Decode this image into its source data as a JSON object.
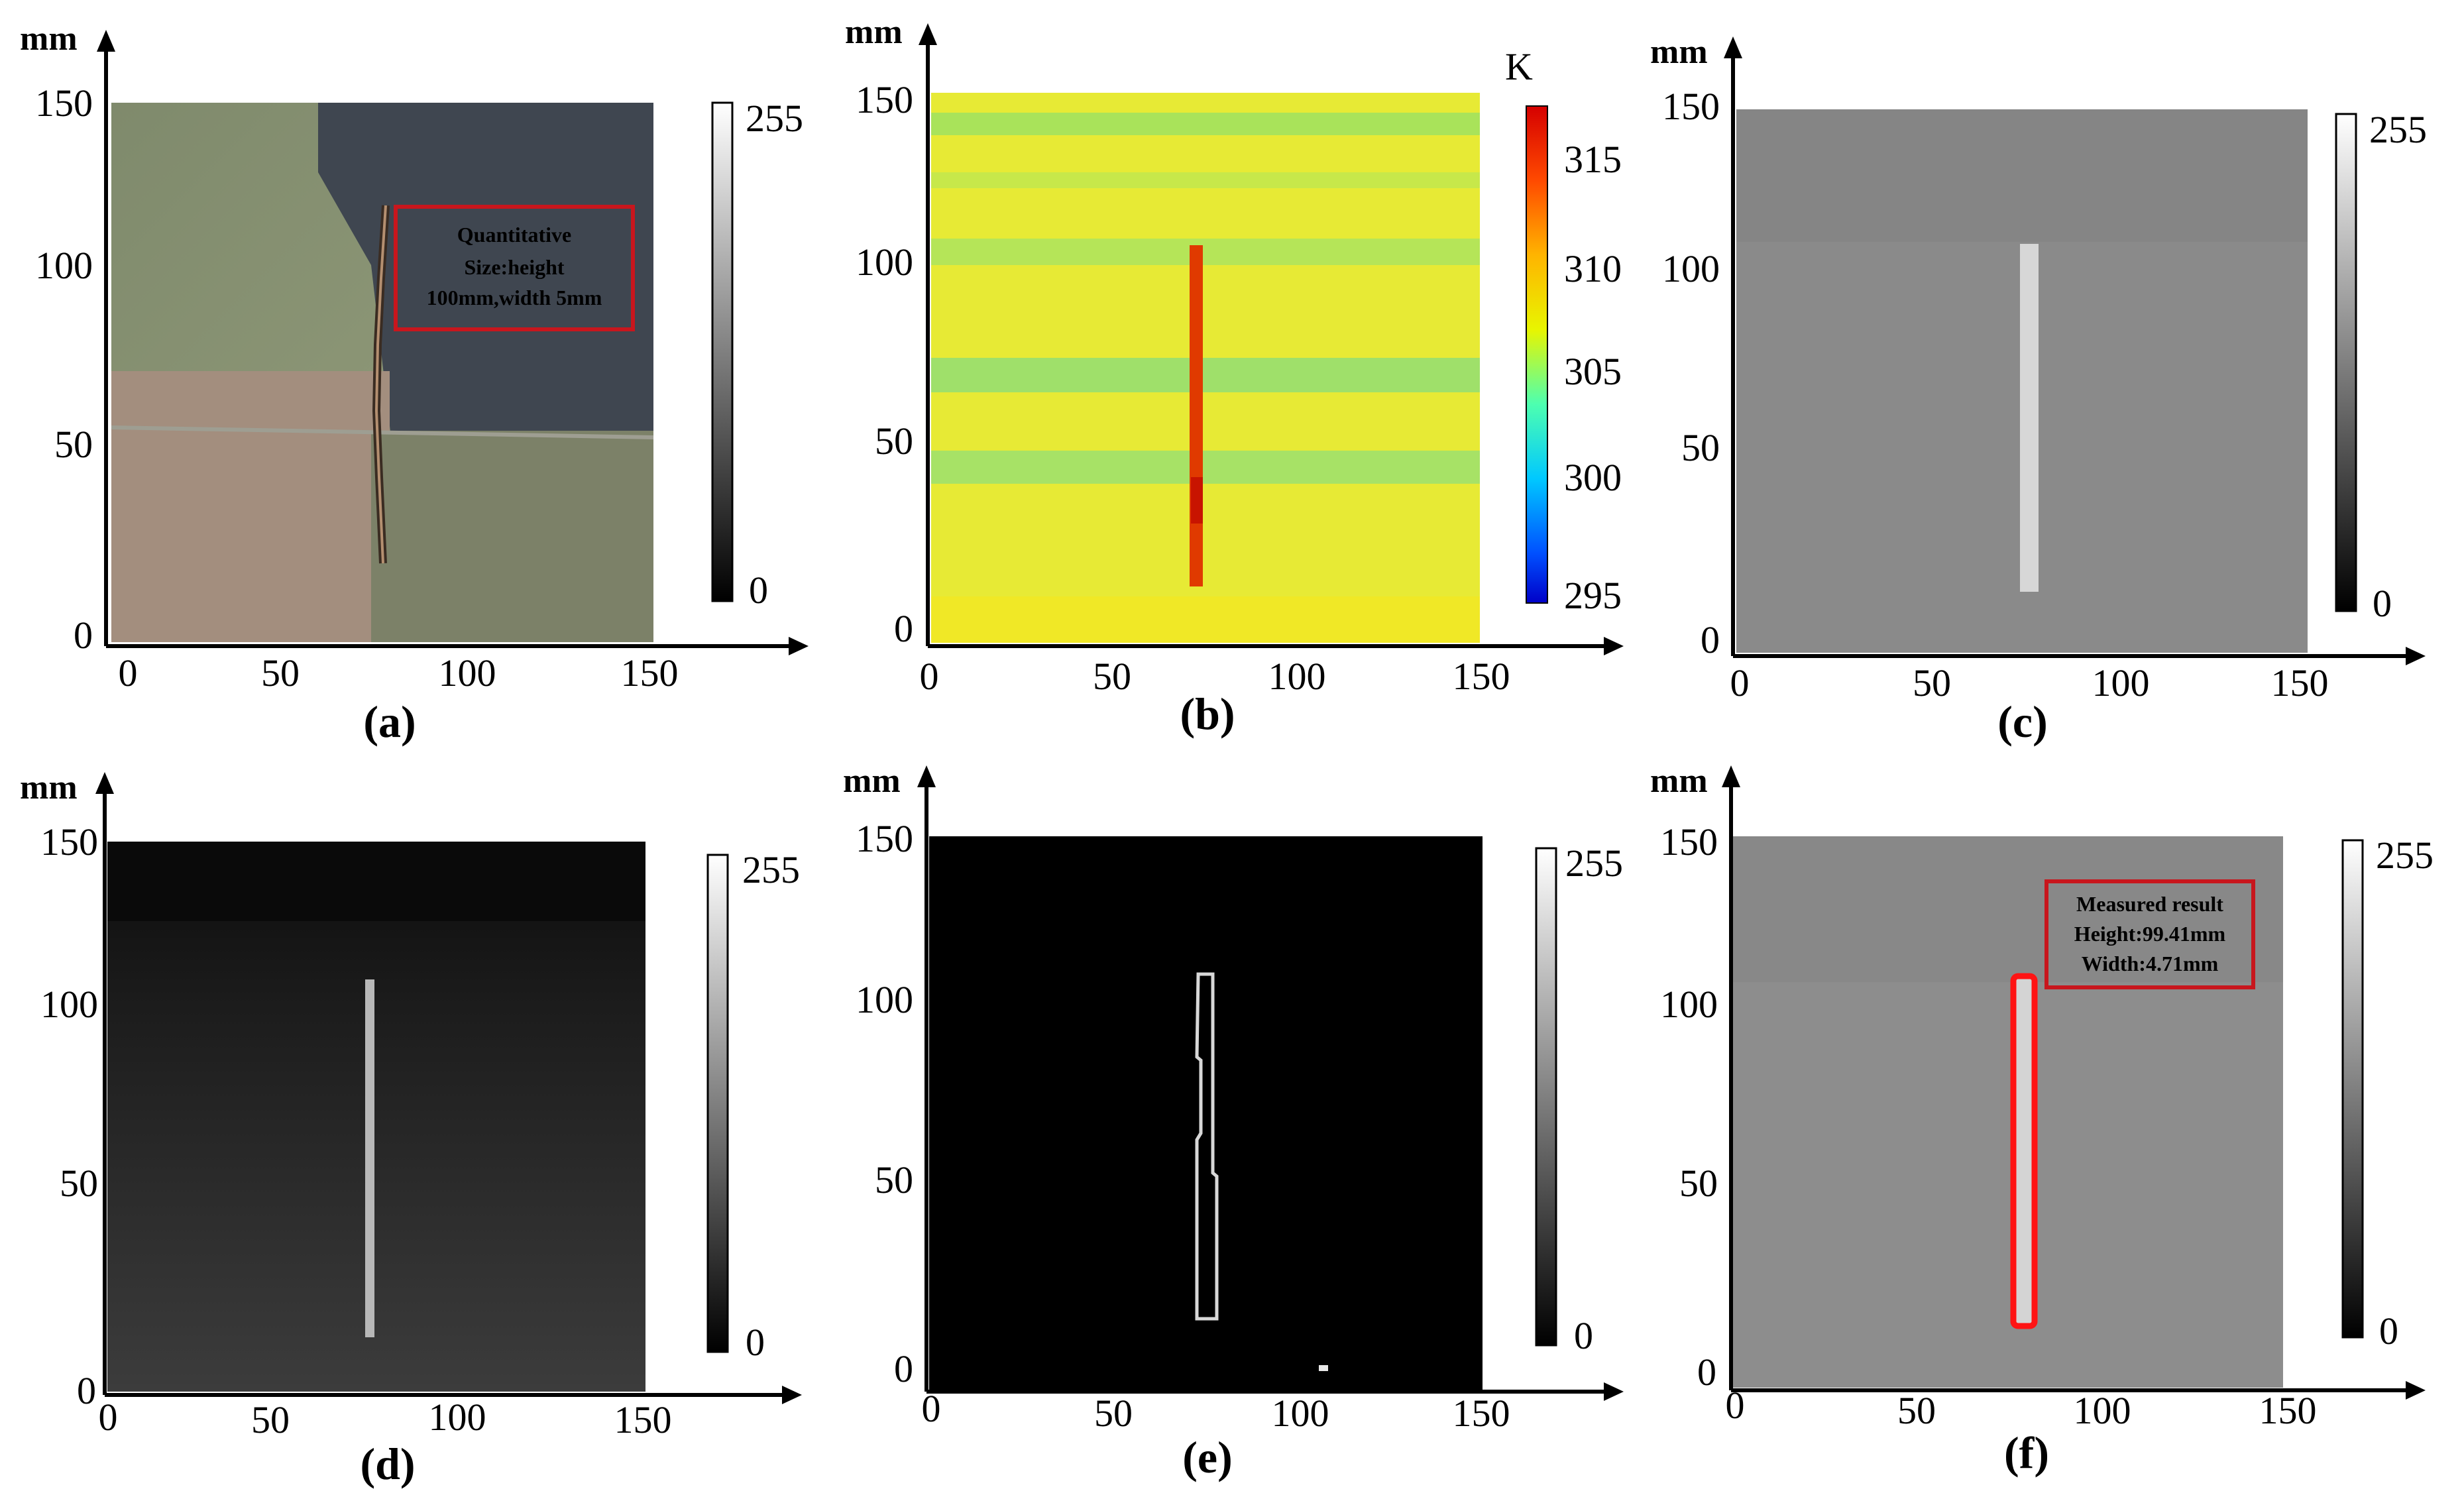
{
  "axes": {
    "unit": "mm",
    "ticks": [
      "0",
      "50",
      "100",
      "150"
    ]
  },
  "colorbar_gray": {
    "max": "255",
    "min": "0"
  },
  "colorbar_temp": {
    "unit": "K",
    "ticks": [
      "315",
      "310",
      "305",
      "300",
      "295"
    ]
  },
  "panels": {
    "a": {
      "caption": "(a)",
      "annotation": [
        "Quantitative",
        "Size:height",
        "100mm,width 5mm"
      ],
      "annotation_color": "#c8161d"
    },
    "b": {
      "caption": "(b)"
    },
    "c": {
      "caption": "(c)"
    },
    "d": {
      "caption": "(d)"
    },
    "e": {
      "caption": "(e)"
    },
    "f": {
      "caption": "(f)",
      "annotation": [
        "Measured result",
        "Height:99.41mm",
        "Width:4.71mm"
      ],
      "annotation_color": "#c8161d"
    }
  }
}
